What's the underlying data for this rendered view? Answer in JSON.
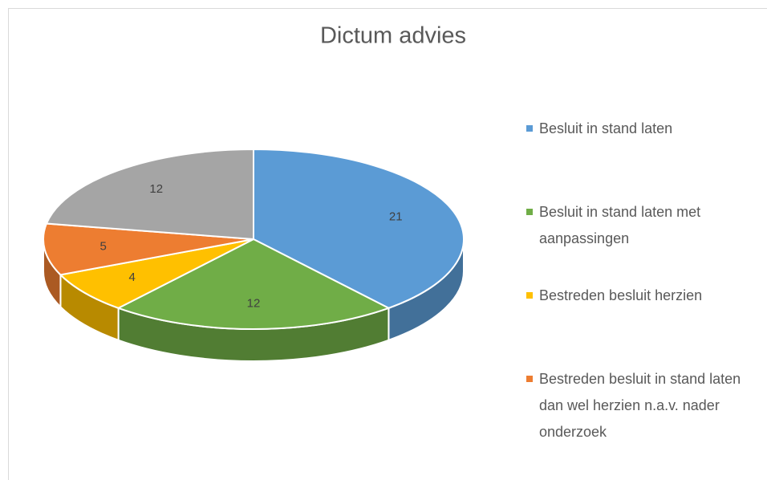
{
  "chart_data": {
    "type": "pie3d",
    "title": "Dictum advies",
    "categories": [
      "Besluit in stand laten",
      "Besluit in stand laten met aanpassingen",
      "Bestreden besluit herzien",
      "Bestreden besluit in stand laten dan wel herzien n.a.v. nader onderzoek",
      null
    ],
    "values": [
      21,
      12,
      4,
      5,
      12
    ],
    "colors": [
      "#5b9bd5",
      "#70ad47",
      "#ffc000",
      "#ed7d31",
      "#a5a5a5"
    ],
    "legend": "right"
  }
}
